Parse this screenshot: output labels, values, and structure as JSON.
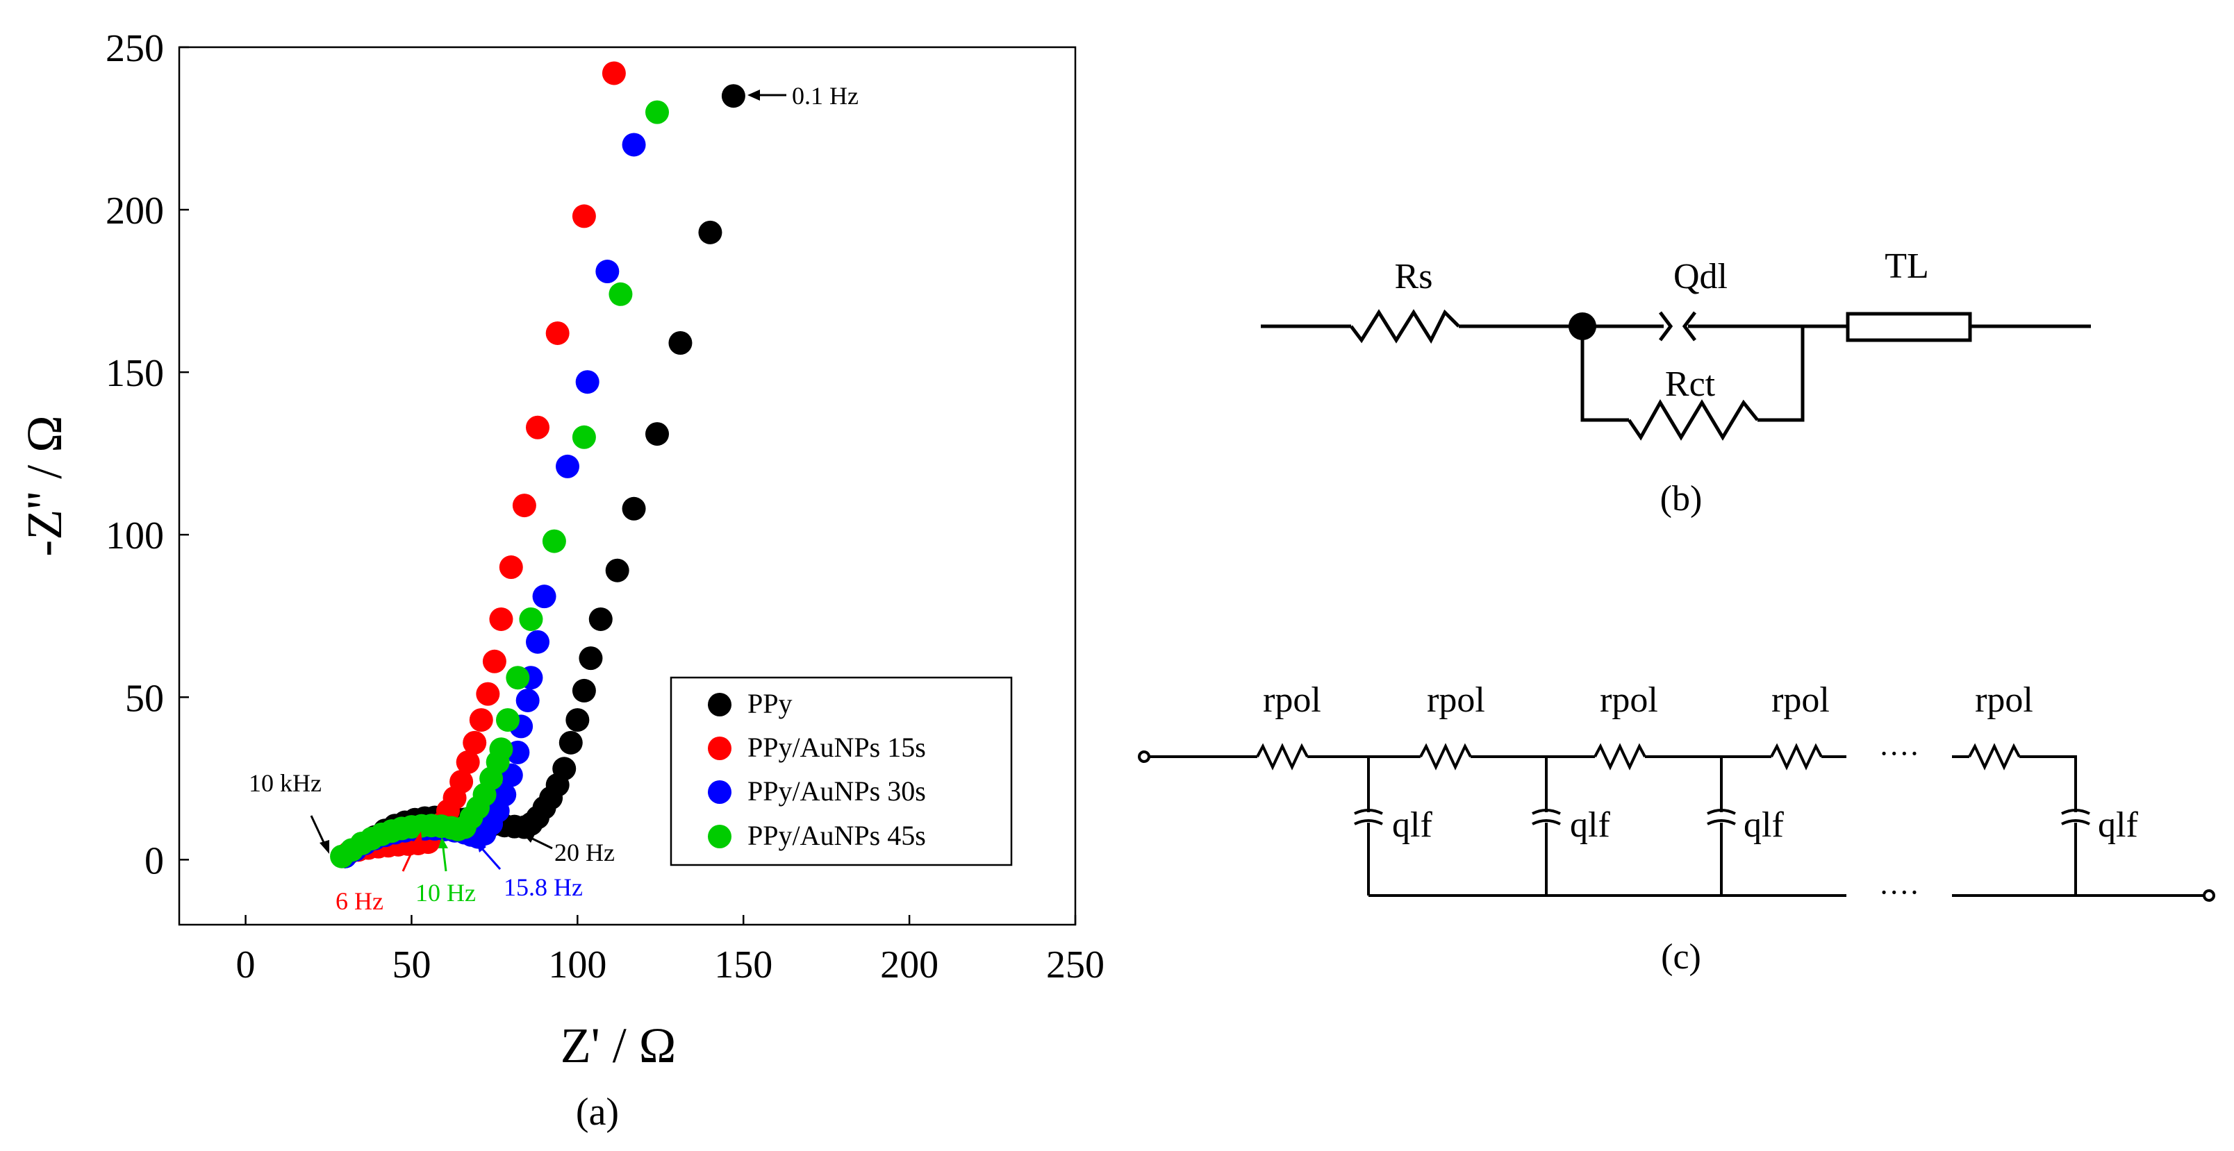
{
  "chart_data": {
    "type": "scatter",
    "caption": "(a)",
    "xlabel": "Z' / Ω",
    "ylabel": "-Z'' / Ω",
    "xlim": [
      -20,
      250
    ],
    "ylim": [
      -20,
      250
    ],
    "xticks": [
      0,
      50,
      100,
      150,
      200,
      250
    ],
    "yticks": [
      0,
      50,
      100,
      150,
      200,
      250
    ],
    "grid": false,
    "legend_position": "bottom-right",
    "series": [
      {
        "name": "PPy",
        "color": "#000000",
        "points": [
          [
            30,
            1
          ],
          [
            33,
            3
          ],
          [
            36,
            5
          ],
          [
            39,
            7
          ],
          [
            42,
            9
          ],
          [
            45,
            10.5
          ],
          [
            48,
            11.5
          ],
          [
            51,
            12.3
          ],
          [
            54,
            12.8
          ],
          [
            57,
            13
          ],
          [
            60,
            13
          ],
          [
            63,
            12.8
          ],
          [
            66,
            12.4
          ],
          [
            69,
            12
          ],
          [
            72,
            11.5
          ],
          [
            75,
            11
          ],
          [
            78,
            10.5
          ],
          [
            81,
            10.2
          ],
          [
            84,
            10
          ],
          [
            86,
            11
          ],
          [
            88,
            13
          ],
          [
            90,
            16
          ],
          [
            92,
            19
          ],
          [
            94,
            23
          ],
          [
            96,
            28
          ],
          [
            98,
            36
          ],
          [
            100,
            43
          ],
          [
            102,
            52
          ],
          [
            104,
            62
          ],
          [
            107,
            74
          ],
          [
            112,
            89
          ],
          [
            117,
            108
          ],
          [
            124,
            131
          ],
          [
            131,
            159
          ],
          [
            140,
            193
          ],
          [
            147,
            235
          ]
        ]
      },
      {
        "name": "PPy/AuNPs 15s",
        "color": "#ff0000",
        "points": [
          [
            31,
            2
          ],
          [
            34,
            3
          ],
          [
            37,
            3.6
          ],
          [
            40,
            4
          ],
          [
            43,
            4.3
          ],
          [
            46,
            4.6
          ],
          [
            49,
            4.8
          ],
          [
            52,
            5
          ],
          [
            55,
            5.4
          ],
          [
            57,
            8
          ],
          [
            59,
            11
          ],
          [
            61,
            15
          ],
          [
            63,
            19
          ],
          [
            65,
            24
          ],
          [
            67,
            30
          ],
          [
            69,
            36
          ],
          [
            71,
            43
          ],
          [
            73,
            51
          ],
          [
            75,
            61
          ],
          [
            77,
            74
          ],
          [
            80,
            90
          ],
          [
            84,
            109
          ],
          [
            88,
            133
          ],
          [
            94,
            162
          ],
          [
            102,
            198
          ],
          [
            111,
            242
          ]
        ]
      },
      {
        "name": "PPy/AuNPs 30s",
        "color": "#0000ff",
        "points": [
          [
            30,
            1
          ],
          [
            33,
            3
          ],
          [
            36,
            5
          ],
          [
            39,
            6.5
          ],
          [
            42,
            7.5
          ],
          [
            45,
            8.3
          ],
          [
            48,
            8.9
          ],
          [
            51,
            9.3
          ],
          [
            54,
            9.5
          ],
          [
            57,
            9.5
          ],
          [
            60,
            9.3
          ],
          [
            63,
            8.9
          ],
          [
            66,
            8.3
          ],
          [
            68,
            7.6
          ],
          [
            70,
            7
          ],
          [
            72,
            8
          ],
          [
            74,
            11
          ],
          [
            76,
            15
          ],
          [
            78,
            20
          ],
          [
            80,
            26
          ],
          [
            82,
            33
          ],
          [
            83,
            41
          ],
          [
            85,
            49
          ],
          [
            86,
            56
          ],
          [
            88,
            67
          ],
          [
            90,
            81
          ],
          [
            97,
            121
          ],
          [
            103,
            147
          ],
          [
            109,
            181
          ],
          [
            117,
            220
          ]
        ]
      },
      {
        "name": "PPy/AuNPs 45s",
        "color": "#00cc00",
        "points": [
          [
            29,
            1
          ],
          [
            32,
            3
          ],
          [
            35,
            5
          ],
          [
            38,
            6.5
          ],
          [
            41,
            7.8
          ],
          [
            44,
            8.8
          ],
          [
            47,
            9.6
          ],
          [
            50,
            10.1
          ],
          [
            53,
            10.4
          ],
          [
            56,
            10.5
          ],
          [
            59,
            10.3
          ],
          [
            62,
            9.8
          ],
          [
            64,
            9.3
          ],
          [
            66,
            10
          ],
          [
            68,
            13
          ],
          [
            70,
            16
          ],
          [
            72,
            20
          ],
          [
            74,
            25
          ],
          [
            76,
            30
          ],
          [
            77,
            34
          ],
          [
            79,
            43
          ],
          [
            82,
            56
          ],
          [
            86,
            74
          ],
          [
            93,
            98
          ],
          [
            102,
            130
          ],
          [
            113,
            174
          ],
          [
            124,
            230
          ]
        ]
      }
    ],
    "annotations": [
      {
        "text": "0.1 Hz",
        "color": "#000000"
      },
      {
        "text": "10 kHz",
        "color": "#000000"
      },
      {
        "text": "20 Hz",
        "color": "#000000"
      },
      {
        "text": "6 Hz",
        "color": "#ff0000"
      },
      {
        "text": "10 Hz",
        "color": "#00cc00"
      },
      {
        "text": "15.8 Hz",
        "color": "#0000ff"
      }
    ]
  },
  "circuit_b": {
    "caption": "(b)",
    "labels": {
      "rs": "Rs",
      "qdl": "Qdl",
      "tl": "TL",
      "rct": "Rct"
    }
  },
  "circuit_c": {
    "caption": "(c)",
    "resistor_label": "rpol",
    "capacitor_label": "qlf",
    "ellipsis": "····"
  }
}
